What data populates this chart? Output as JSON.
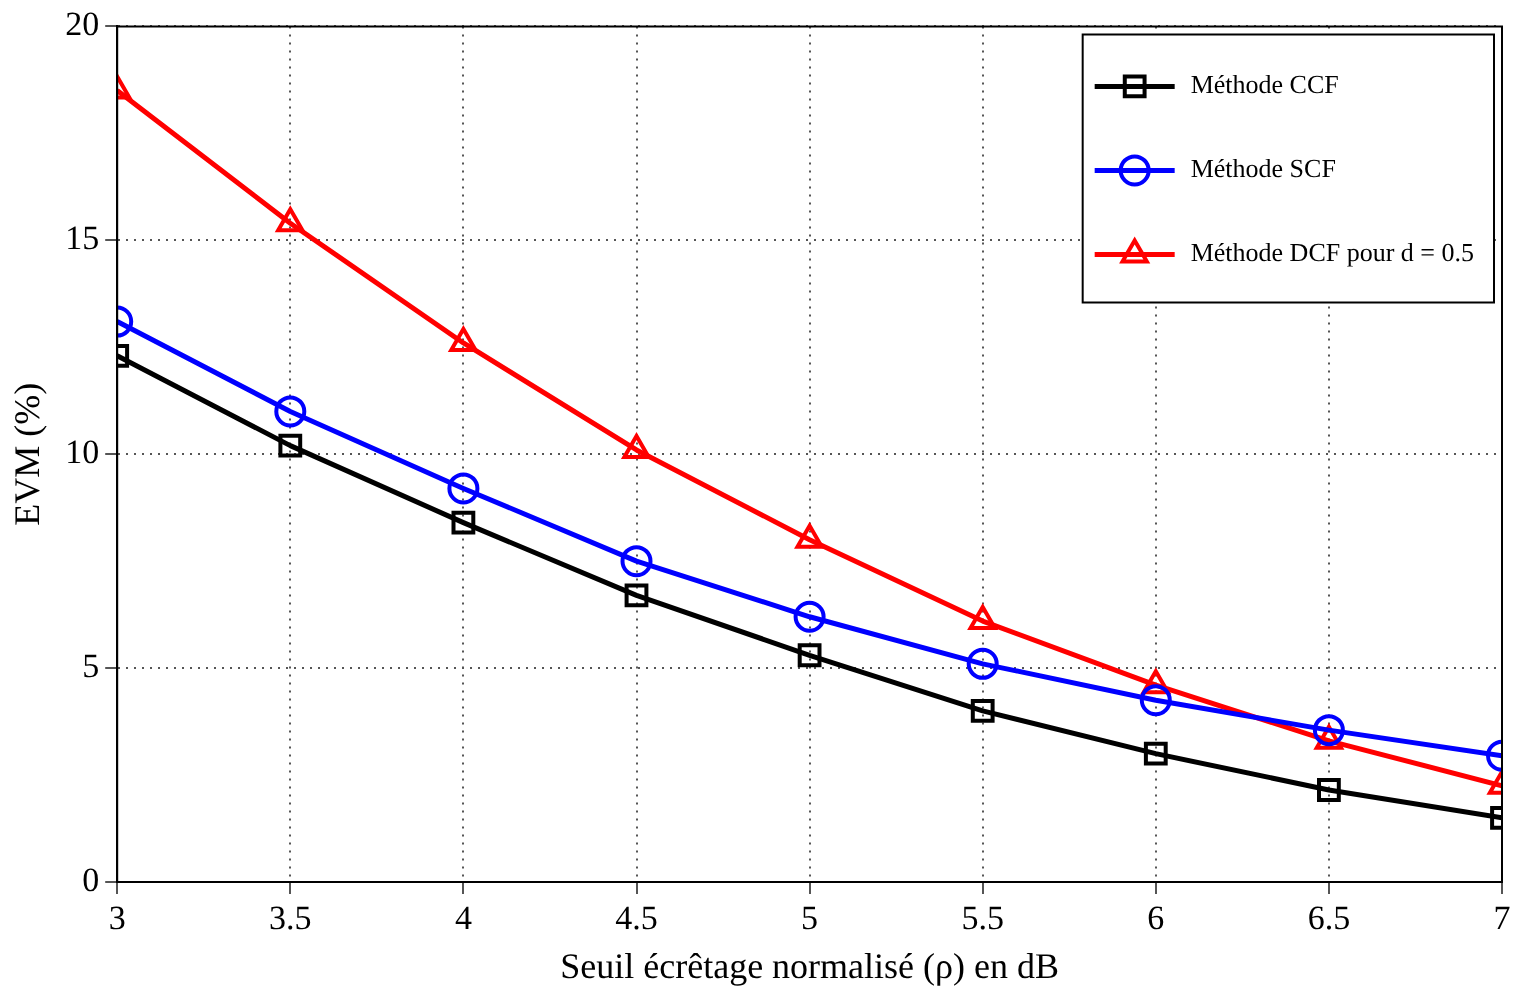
{
  "chart_data": {
    "type": "line",
    "xlabel": "Seuil écrêtage normalisé (ρ) en dB",
    "ylabel": "EVM (%)",
    "x": [
      3,
      3.5,
      4,
      4.5,
      5,
      5.5,
      6,
      6.5,
      7
    ],
    "xlim": [
      3,
      7
    ],
    "xticks": [
      3,
      3.5,
      4,
      4.5,
      5,
      5.5,
      6,
      6.5,
      7
    ],
    "ylim": [
      0,
      20
    ],
    "yticks": [
      0,
      5,
      10,
      15,
      20
    ],
    "grid": true,
    "legend": "top right",
    "line_style": "solid",
    "series": [
      {
        "name": "Méthode CCF",
        "color": "#000000",
        "marker": "square",
        "values": [
          12.3,
          10.2,
          8.4,
          6.7,
          5.3,
          4.0,
          3.0,
          2.15,
          1.5
        ]
      },
      {
        "name": "Méthode SCF",
        "color": "#0000ff",
        "marker": "circle",
        "values": [
          13.1,
          11.0,
          9.2,
          7.5,
          6.2,
          5.1,
          4.25,
          3.55,
          2.95
        ]
      },
      {
        "name": "Méthode DCF pour d = 0.5",
        "color": "#ff0000",
        "marker": "triangle",
        "values": [
          18.5,
          15.4,
          12.6,
          10.1,
          8.0,
          6.1,
          4.6,
          3.3,
          2.25
        ]
      }
    ]
  }
}
